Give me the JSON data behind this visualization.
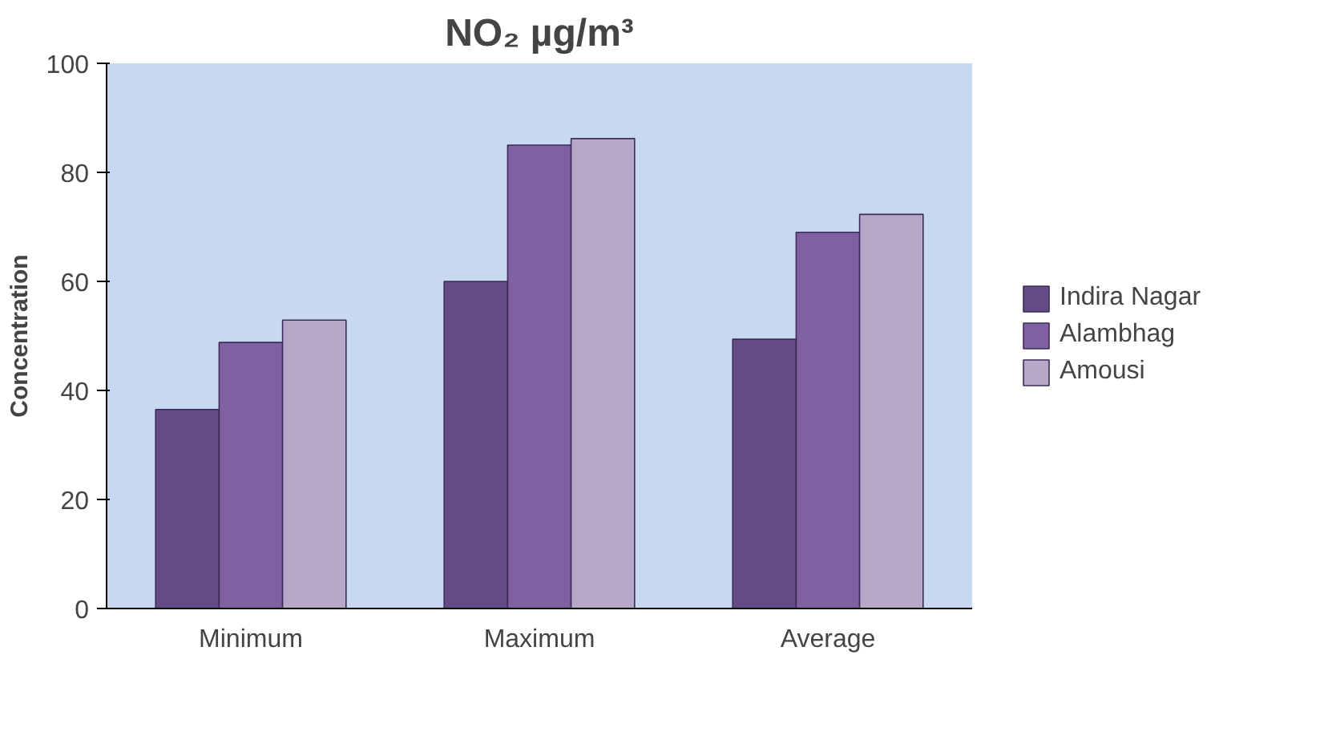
{
  "chart_data": {
    "type": "bar",
    "title": "NO₂ µg/m³",
    "ylabel": "Concentration",
    "categories": [
      "Minimum",
      "Maximum",
      "Average"
    ],
    "series": [
      {
        "name": "Indira Nagar",
        "color": "#654b86",
        "values": [
          36.5,
          60,
          49.4
        ]
      },
      {
        "name": "Alambhag",
        "color": "#7f60a0",
        "values": [
          48.8,
          85,
          69
        ]
      },
      {
        "name": "Amousi",
        "color": "#b8a8c8",
        "values": [
          52.9,
          86.2,
          72.3
        ]
      }
    ],
    "ylim": [
      0,
      100
    ],
    "yticks": [
      0,
      20,
      40,
      60,
      80,
      100
    ],
    "grid": false,
    "legend": "right"
  }
}
